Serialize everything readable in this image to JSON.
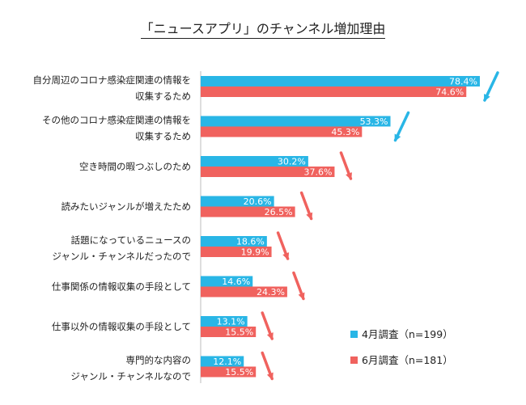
{
  "chart_data": {
    "type": "bar",
    "orientation": "horizontal",
    "title": "「ニュースアプリ」のチャンネル増加理由",
    "categories": [
      [
        "自分周辺のコロナ感染症関連の情報を",
        "収集するため"
      ],
      [
        "その他のコロナ感染症関連の情報を",
        "収集するため"
      ],
      [
        "空き時間の暇つぶしのため"
      ],
      [
        "読みたいジャンルが増えたため"
      ],
      [
        "話題になっているニュースの",
        "ジャンル・チャンネルだったので"
      ],
      [
        "仕事関係の情報収集の手段として"
      ],
      [
        "仕事以外の情報収集の手段として"
      ],
      [
        "専門的な内容の",
        "ジャンル・チャンネルなので"
      ]
    ],
    "series": [
      {
        "name": "4月調査（n=199）",
        "color": "#29b6e6",
        "values": [
          78.4,
          53.3,
          30.2,
          20.6,
          18.6,
          14.6,
          13.1,
          12.1
        ],
        "labels": [
          "78.4%",
          "53.3%",
          "30.2%",
          "20.6%",
          "18.6%",
          "14.6%",
          "13.1%",
          "12.1%"
        ]
      },
      {
        "name": "6月調査（n=181）",
        "color": "#f0625e",
        "values": [
          74.6,
          45.3,
          37.6,
          26.5,
          19.9,
          24.3,
          15.5,
          15.5
        ],
        "labels": [
          "74.6%",
          "45.3%",
          "37.6%",
          "26.5%",
          "19.9%",
          "24.3%",
          "15.5%",
          "15.5%"
        ]
      }
    ],
    "trend_arrows": [
      "down",
      "down",
      "up",
      "up",
      "up",
      "up",
      "up",
      "up"
    ],
    "xlim": [
      0,
      100
    ],
    "grid": false,
    "legend_position": "bottom-right"
  }
}
